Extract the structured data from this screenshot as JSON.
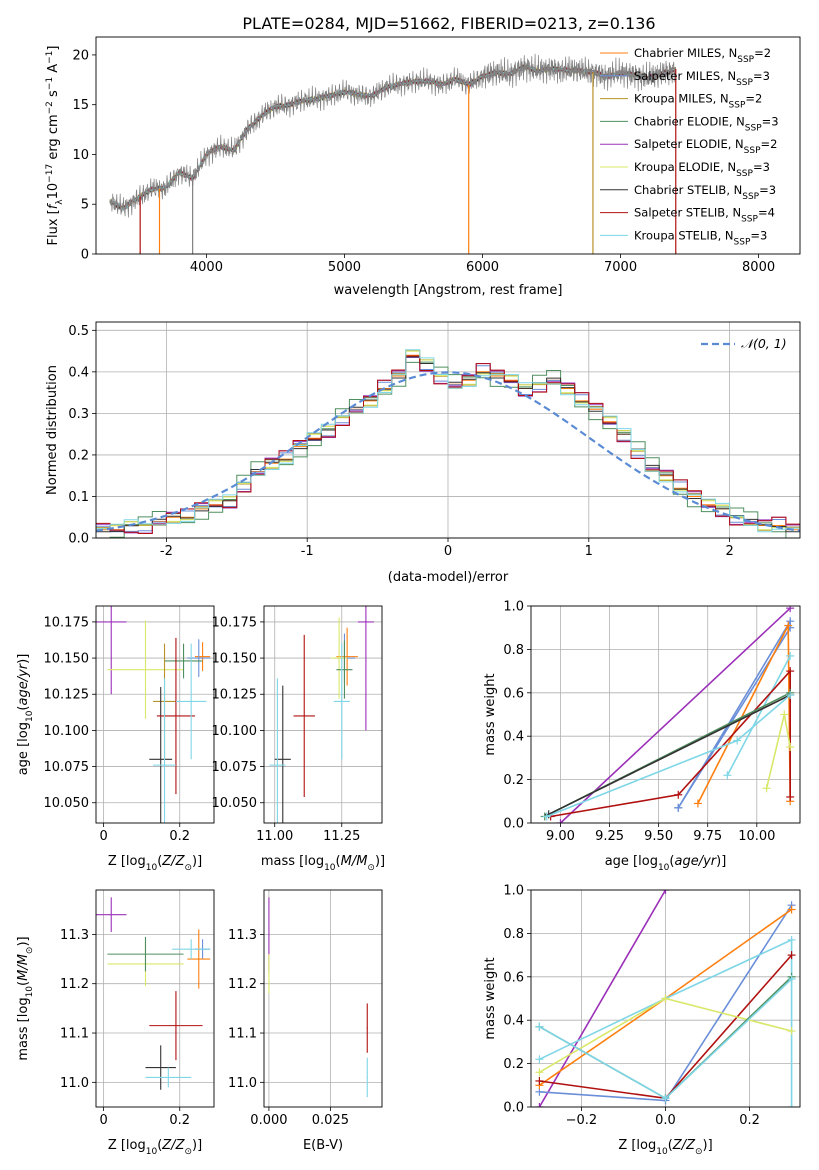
{
  "figure": {
    "title": "PLATE=0284, MJD=51662, FIBERID=0213, z=0.136"
  },
  "series_styles": [
    {
      "name": "Chabrier MILES",
      "color": "#ff7f0e"
    },
    {
      "name": "Salpeter MILES",
      "color": "#6a8fd8"
    },
    {
      "name": "Kroupa MILES",
      "color": "#b8922a"
    },
    {
      "name": "Chabrier ELODIE",
      "color": "#4f8f5f"
    },
    {
      "name": "Salpeter ELODIE",
      "color": "#9b30b8"
    },
    {
      "name": "Kroupa ELODIE",
      "color": "#d9e86a"
    },
    {
      "name": "Chabrier STELIB",
      "color": "#333333"
    },
    {
      "name": "Salpeter STELIB",
      "color": "#b01010"
    },
    {
      "name": "Kroupa STELIB",
      "color": "#7fd6e6"
    }
  ],
  "chart_data": [
    {
      "id": "spectrum",
      "type": "line",
      "title": "PLATE=0284, MJD=51662, FIBERID=0213, z=0.136",
      "xlabel": "wavelength [Angstrom, rest frame]",
      "ylabel": "Flux [f_λ10^-17 erg cm^-2 s^-1 A^-1]",
      "xlim": [
        3200,
        8300
      ],
      "ylim": [
        0,
        21.8
      ],
      "xticks": [
        4000,
        5000,
        6000,
        7000,
        8000
      ],
      "yticks": [
        0,
        5,
        10,
        15,
        20
      ],
      "grid": false,
      "legend_location": "top-right",
      "data_series": {
        "name": "data",
        "color": "#808080"
      },
      "data_x": [
        3300,
        3400,
        3500,
        3600,
        3700,
        3800,
        3900,
        4000,
        4100,
        4200,
        4300,
        4400,
        4500,
        4600,
        4700,
        4800,
        4900,
        5000,
        5100,
        5200,
        5300,
        5400,
        5500,
        5600,
        5700,
        5800,
        5900,
        6000,
        6100,
        6200,
        6300,
        6400,
        6500,
        6600,
        6700,
        6800,
        6900,
        7000,
        7100,
        7200,
        7300,
        7400
      ],
      "data_y": [
        5.3,
        4.6,
        5.6,
        6.5,
        6.6,
        8.2,
        7.6,
        10.0,
        10.8,
        10.4,
        12.6,
        13.9,
        14.8,
        15.0,
        15.4,
        15.6,
        15.9,
        16.3,
        16.0,
        15.9,
        16.7,
        17.1,
        17.3,
        17.4,
        17.0,
        17.6,
        17.0,
        17.9,
        18.2,
        18.1,
        18.8,
        18.4,
        18.6,
        18.5,
        18.4,
        18.3,
        17.8,
        18.2,
        18.0,
        17.7,
        18.1,
        18.6
      ],
      "legend": [
        {
          "label": "Chabrier MILES",
          "nssp": "2"
        },
        {
          "label": "Salpeter MILES",
          "nssp": "3"
        },
        {
          "label": "Kroupa MILES",
          "nssp": "2"
        },
        {
          "label": "Chabrier ELODIE",
          "nssp": "3"
        },
        {
          "label": "Salpeter ELODIE",
          "nssp": "2"
        },
        {
          "label": "Kroupa ELODIE",
          "nssp": "3"
        },
        {
          "label": "Chabrier STELIB",
          "nssp": "3"
        },
        {
          "label": "Salpeter STELIB",
          "nssp": "4"
        },
        {
          "label": "Kroupa STELIB",
          "nssp": "3"
        }
      ]
    },
    {
      "id": "residuals",
      "type": "line",
      "xlabel": "(data-model)/error",
      "ylabel": "Normed distribution",
      "xlim": [
        -2.5,
        2.5
      ],
      "ylim": [
        0,
        0.52
      ],
      "xticks": [
        -2,
        -1,
        0,
        1,
        2
      ],
      "yticks": [
        0.0,
        0.1,
        0.2,
        0.3,
        0.4,
        0.5
      ],
      "grid": true,
      "legend_location": "top-right",
      "legend": [
        {
          "label": "𝒩(0, 1)",
          "color": "#5b8bd4"
        }
      ],
      "bin_width": 0.1,
      "hist_x": [
        -2.45,
        -2.35,
        -2.25,
        -2.15,
        -2.05,
        -1.95,
        -1.85,
        -1.75,
        -1.65,
        -1.55,
        -1.45,
        -1.35,
        -1.25,
        -1.15,
        -1.05,
        -0.95,
        -0.85,
        -0.75,
        -0.65,
        -0.55,
        -0.45,
        -0.35,
        -0.25,
        -0.15,
        -0.05,
        0.05,
        0.15,
        0.25,
        0.35,
        0.45,
        0.55,
        0.65,
        0.75,
        0.85,
        0.95,
        1.05,
        1.15,
        1.25,
        1.35,
        1.45,
        1.55,
        1.65,
        1.75,
        1.85,
        1.95,
        2.05,
        2.15,
        2.25,
        2.35,
        2.45
      ],
      "hist_y": [
        0.02,
        0.02,
        0.03,
        0.03,
        0.04,
        0.05,
        0.05,
        0.07,
        0.08,
        0.09,
        0.13,
        0.16,
        0.18,
        0.19,
        0.22,
        0.24,
        0.26,
        0.29,
        0.31,
        0.33,
        0.36,
        0.39,
        0.44,
        0.42,
        0.39,
        0.37,
        0.38,
        0.4,
        0.39,
        0.38,
        0.36,
        0.37,
        0.38,
        0.36,
        0.33,
        0.31,
        0.28,
        0.25,
        0.21,
        0.17,
        0.15,
        0.12,
        0.1,
        0.08,
        0.07,
        0.05,
        0.04,
        0.03,
        0.03,
        0.02
      ],
      "hist_offsets": [
        0.0,
        0.015,
        -0.012,
        0.025,
        -0.02,
        0.01,
        -0.005,
        0.02,
        -0.015
      ],
      "normal_curve": {
        "mean": 0,
        "sigma": 1
      }
    },
    {
      "id": "age_vs_z",
      "type": "scatter",
      "xlabel": "Z [log10(Z/Z⊙)]",
      "ylabel": "age  [log10(age/yr)]",
      "xlim": [
        -0.02,
        0.29
      ],
      "ylim": [
        10.036,
        10.186
      ],
      "xticks": [
        0.0,
        0.2
      ],
      "yticks": [
        10.05,
        10.075,
        10.1,
        10.125,
        10.15,
        10.175
      ],
      "ytick_labels": [
        "10.050",
        "10.075",
        "10.100",
        "10.125",
        "10.150",
        "10.175"
      ],
      "grid": true,
      "points": [
        {
          "s": 0,
          "x": 0.26,
          "y": 10.151,
          "ex": 0.02,
          "ey": 0.01
        },
        {
          "s": 1,
          "x": 0.25,
          "y": 10.15,
          "ex": 0.03,
          "ey": 0.013
        },
        {
          "s": 4,
          "x": 0.02,
          "y": 10.175,
          "ex": 0.04,
          "ey": 0.05
        },
        {
          "s": 5,
          "x": 0.11,
          "y": 10.142,
          "ex": 0.1,
          "ey": 0.034
        },
        {
          "s": 3,
          "x": 0.21,
          "y": 10.148,
          "ex": 0.05,
          "ey": 0.012
        },
        {
          "s": 2,
          "x": 0.16,
          "y": 10.12,
          "ex": 0.03,
          "ey": 0.04
        },
        {
          "s": 6,
          "x": 0.15,
          "y": 10.08,
          "ex": 0.03,
          "ey": 0.05
        },
        {
          "s": 7,
          "x": 0.19,
          "y": 10.11,
          "ex": 0.05,
          "ey": 0.054
        },
        {
          "s": 8,
          "x": 0.16,
          "y": 10.076,
          "ex": 0.03,
          "ey": 0.06
        },
        {
          "s": 8,
          "x": 0.23,
          "y": 10.12,
          "ex": 0.04,
          "ey": 0.04
        }
      ]
    },
    {
      "id": "age_vs_mass",
      "type": "scatter",
      "xlabel": "mass [log10(M/M⊙)]",
      "ylabel": "",
      "xlim": [
        10.96,
        11.4
      ],
      "ylim": [
        10.036,
        10.186
      ],
      "xticks": [
        11.0,
        11.25
      ],
      "xtick_labels": [
        "11.00",
        "11.25"
      ],
      "yticks": [
        10.05,
        10.075,
        10.1,
        10.125,
        10.15,
        10.175
      ],
      "ytick_labels": [
        "10.050",
        "10.075",
        "10.100",
        "10.125",
        "10.150",
        "10.175"
      ],
      "grid": true,
      "points": [
        {
          "s": 4,
          "x": 11.34,
          "y": 10.175,
          "ex": 0.03,
          "ey": 0.075
        },
        {
          "s": 0,
          "x": 11.27,
          "y": 10.151,
          "ex": 0.04,
          "ey": 0.02
        },
        {
          "s": 1,
          "x": 11.26,
          "y": 10.15,
          "ex": 0.04,
          "ey": 0.017
        },
        {
          "s": 5,
          "x": 11.24,
          "y": 10.15,
          "ex": 0.03,
          "ey": 0.028
        },
        {
          "s": 3,
          "x": 11.26,
          "y": 10.142,
          "ex": 0.03,
          "ey": 0.02
        },
        {
          "s": 8,
          "x": 11.25,
          "y": 10.12,
          "ex": 0.03,
          "ey": 0.04
        },
        {
          "s": 7,
          "x": 11.11,
          "y": 10.11,
          "ex": 0.04,
          "ey": 0.056
        },
        {
          "s": 6,
          "x": 11.03,
          "y": 10.08,
          "ex": 0.03,
          "ey": 0.051
        },
        {
          "s": 8,
          "x": 11.01,
          "y": 10.076,
          "ex": 0.03,
          "ey": 0.06
        }
      ]
    },
    {
      "id": "weight_vs_age",
      "type": "line",
      "xlabel": "age  [log10(age/yr)]",
      "ylabel": "mass weight",
      "xlim": [
        8.85,
        10.22
      ],
      "ylim": [
        0,
        1.0
      ],
      "xticks": [
        9.0,
        9.25,
        9.5,
        9.75,
        10.0
      ],
      "xtick_labels": [
        "9.00",
        "9.25",
        "9.50",
        "9.75",
        "10.00"
      ],
      "yticks": [
        0.0,
        0.2,
        0.4,
        0.6,
        0.8,
        1.0
      ],
      "grid": true,
      "series": [
        {
          "s": 4,
          "x": [
            9.0,
            10.17
          ],
          "y": [
            0.0,
            0.99
          ]
        },
        {
          "s": 1,
          "x": [
            9.6,
            10.17,
            10.17,
            9.6
          ],
          "y": [
            0.07,
            0.93,
            0.9,
            0.07
          ]
        },
        {
          "s": 0,
          "x": [
            9.7,
            10.16,
            10.17
          ],
          "y": [
            0.09,
            0.91,
            0.1
          ]
        },
        {
          "s": 8,
          "x": [
            9.85,
            10.17
          ],
          "y": [
            0.22,
            0.77
          ]
        },
        {
          "s": 7,
          "x": [
            8.95,
            9.6,
            10.17,
            10.17
          ],
          "y": [
            0.03,
            0.13,
            0.7,
            0.12
          ]
        },
        {
          "s": 5,
          "x": [
            10.05,
            10.14,
            10.17
          ],
          "y": [
            0.16,
            0.5,
            0.35
          ]
        },
        {
          "s": 3,
          "x": [
            8.92,
            10.17
          ],
          "y": [
            0.03,
            0.6
          ]
        },
        {
          "s": 6,
          "x": [
            8.94,
            10.17
          ],
          "y": [
            0.04,
            0.59
          ]
        },
        {
          "s": 8,
          "x": [
            8.93,
            9.9,
            10.17
          ],
          "y": [
            0.03,
            0.38,
            0.59
          ]
        }
      ]
    },
    {
      "id": "mass_vs_z",
      "type": "scatter",
      "xlabel": "Z [log10(Z/Z⊙)]",
      "ylabel": "mass [log10(M/M⊙)]",
      "xlim": [
        -0.02,
        0.29
      ],
      "ylim": [
        10.95,
        11.39
      ],
      "xticks": [
        0.0,
        0.2
      ],
      "yticks": [
        11.0,
        11.1,
        11.2,
        11.3
      ],
      "grid": true,
      "points": [
        {
          "s": 4,
          "x": 0.02,
          "y": 11.34,
          "ex": 0.04,
          "ey": 0.035
        },
        {
          "s": 5,
          "x": 0.11,
          "y": 11.24,
          "ex": 0.1,
          "ey": 0.045
        },
        {
          "s": 3,
          "x": 0.11,
          "y": 11.26,
          "ex": 0.1,
          "ey": 0.035
        },
        {
          "s": 1,
          "x": 0.26,
          "y": 11.27,
          "ex": 0.02,
          "ey": 0.02
        },
        {
          "s": 0,
          "x": 0.25,
          "y": 11.25,
          "ex": 0.03,
          "ey": 0.06
        },
        {
          "s": 8,
          "x": 0.23,
          "y": 11.27,
          "ex": 0.05,
          "ey": 0.02
        },
        {
          "s": 7,
          "x": 0.19,
          "y": 11.115,
          "ex": 0.07,
          "ey": 0.07
        },
        {
          "s": 6,
          "x": 0.15,
          "y": 11.03,
          "ex": 0.04,
          "ey": 0.045
        },
        {
          "s": 8,
          "x": 0.17,
          "y": 11.01,
          "ex": 0.06,
          "ey": 0.02
        }
      ]
    },
    {
      "id": "mass_vs_ebv",
      "type": "scatter",
      "xlabel": "E(B-V)",
      "ylabel": "",
      "xlim": [
        -0.002,
        0.046
      ],
      "ylim": [
        10.95,
        11.39
      ],
      "xticks": [
        0.0,
        0.025
      ],
      "xtick_labels": [
        "0.000",
        "0.025"
      ],
      "yticks": [
        11.0,
        11.1,
        11.2,
        11.3
      ],
      "grid": true,
      "points": [
        {
          "s": 4,
          "x": 0.0,
          "y": 11.3,
          "ex": 0.0002,
          "ey": 0.075
        },
        {
          "s": 5,
          "x": 0.0,
          "y": 11.22,
          "ex": 0.0002,
          "ey": 0.04
        },
        {
          "s": 7,
          "x": 0.04,
          "y": 11.11,
          "ex": 0.0002,
          "ey": 0.05
        },
        {
          "s": 8,
          "x": 0.04,
          "y": 11.01,
          "ex": 0.0002,
          "ey": 0.04
        }
      ]
    },
    {
      "id": "weight_vs_z",
      "type": "line",
      "xlabel": "Z [log10(Z/Z⊙)]",
      "ylabel": "mass weight",
      "xlim": [
        -0.32,
        0.32
      ],
      "ylim": [
        0,
        1.0
      ],
      "xticks": [
        -0.2,
        0.0,
        0.2
      ],
      "xtick_labels": [
        "−0.2",
        "0.0",
        "0.2"
      ],
      "yticks": [
        0.0,
        0.2,
        0.4,
        0.6,
        0.8,
        1.0
      ],
      "grid": true,
      "series": [
        {
          "s": 4,
          "x": [
            -0.3,
            0.0
          ],
          "y": [
            0.0,
            1.0
          ]
        },
        {
          "s": 1,
          "x": [
            -0.3,
            0.0,
            0.3
          ],
          "y": [
            0.07,
            0.03,
            0.93
          ]
        },
        {
          "s": 0,
          "x": [
            -0.3,
            0.0,
            0.3
          ],
          "y": [
            0.1,
            0.5,
            0.91
          ]
        },
        {
          "s": 8,
          "x": [
            -0.3,
            0.0,
            0.3,
            0.3
          ],
          "y": [
            0.22,
            0.5,
            0.77,
            0.0
          ]
        },
        {
          "s": 7,
          "x": [
            -0.3,
            0.0,
            0.3
          ],
          "y": [
            0.12,
            0.04,
            0.7
          ]
        },
        {
          "s": 5,
          "x": [
            -0.3,
            0.0,
            0.3
          ],
          "y": [
            0.16,
            0.5,
            0.35
          ]
        },
        {
          "s": 3,
          "x": [
            -0.3,
            0.0,
            0.3
          ],
          "y": [
            0.37,
            0.04,
            0.6
          ]
        },
        {
          "s": 8,
          "x": [
            -0.3,
            0.0,
            0.3
          ],
          "y": [
            0.37,
            0.04,
            0.59
          ]
        }
      ]
    }
  ]
}
